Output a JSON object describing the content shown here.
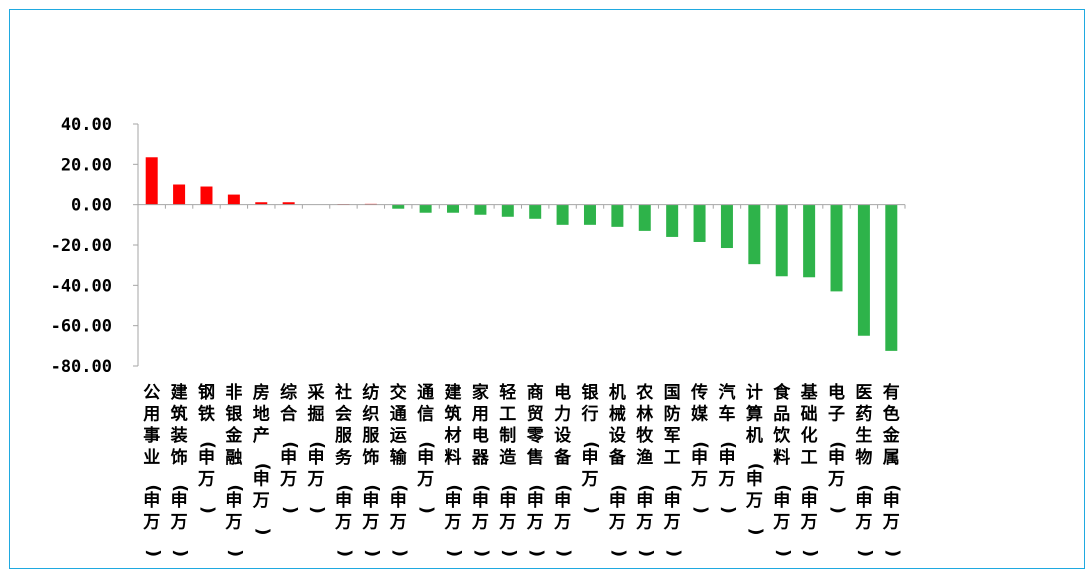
{
  "chart_data": {
    "type": "bar",
    "title": "",
    "xlabel": "",
    "ylabel": "",
    "ylim": [
      -80,
      40
    ],
    "yticks": [
      40,
      20,
      0,
      -20,
      -40,
      -60,
      -80
    ],
    "ytick_labels": [
      "40.00",
      "20.00",
      "0.00",
      "-20.00",
      "-40.00",
      "-60.00",
      "-80.00"
    ],
    "grid": false,
    "legend": "none",
    "colors": {
      "positive": "#FF0000",
      "negative": "#2EB34A",
      "axis": "#A6A6A6",
      "border": "#1FA9E0"
    },
    "categories": [
      "公用事业(申万)",
      "建筑装饰(申万)",
      "钢铁(申万)",
      "非银金融(申万)",
      "房地产(申万)",
      "综合(申万)",
      "采掘(申万)",
      "社会服务(申万)",
      "纺织服饰(申万)",
      "交通运输(申万)",
      "通信(申万)",
      "建筑材料(申万)",
      "家用电器(申万)",
      "轻工制造(申万)",
      "商贸零售(申万)",
      "电力设备(申万)",
      "银行(申万)",
      "机械设备(申万)",
      "农林牧渔(申万)",
      "国防军工(申万)",
      "传媒(申万)",
      "汽车(申万)",
      "计算机(申万)",
      "食品饮料(申万)",
      "基础化工(申万)",
      "电子(申万)",
      "医药生物(申万)",
      "有色金属(申万)"
    ],
    "values": [
      23.5,
      10.0,
      9.0,
      5.0,
      1.2,
      1.2,
      0.0,
      0.3,
      0.4,
      -2.0,
      -4.0,
      -4.0,
      -5.0,
      -6.0,
      -7.0,
      -10.0,
      -10.0,
      -11.0,
      -13.0,
      -16.0,
      -18.5,
      -21.5,
      -29.5,
      -35.5,
      -36.0,
      -43.0,
      -65.0,
      -72.5
    ]
  }
}
